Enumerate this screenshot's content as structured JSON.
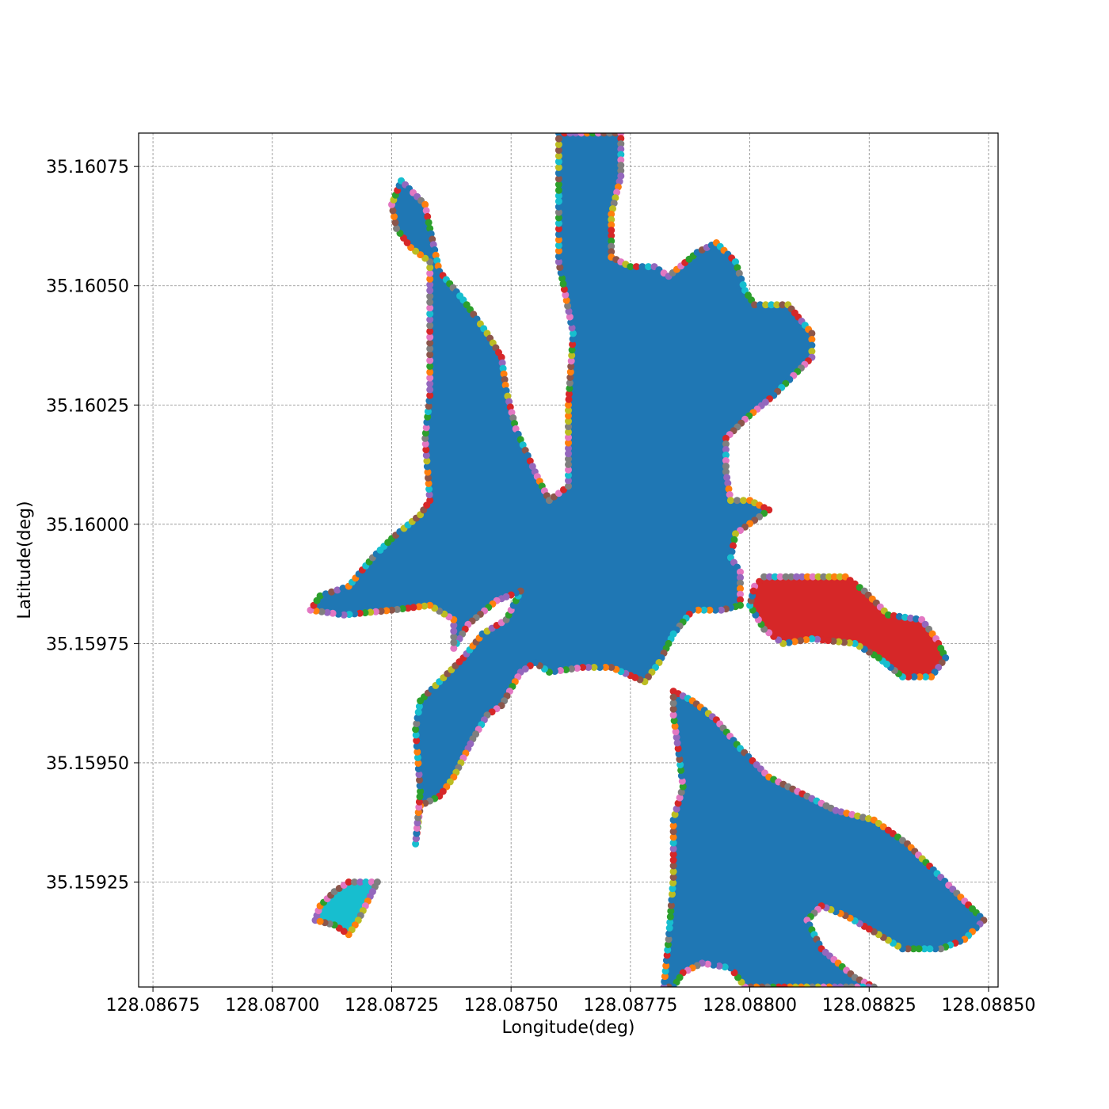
{
  "chart_data": {
    "type": "scatter",
    "title": "",
    "xlabel": "Longitude(deg)",
    "ylabel": "Latitude(deg)",
    "xlim": [
      128.08672,
      128.08852
    ],
    "ylim": [
      35.15903,
      35.16082
    ],
    "xticks": [
      128.08675,
      128.087,
      128.08725,
      128.0875,
      128.08775,
      128.088,
      128.08825,
      128.0885
    ],
    "xtick_labels": [
      "128.08675",
      "128.08700",
      "128.08725",
      "128.08750",
      "128.08775",
      "128.08800",
      "128.08825",
      "128.08850"
    ],
    "yticks": [
      35.15925,
      35.1595,
      35.15975,
      35.16,
      35.16025,
      35.1605,
      35.16075
    ],
    "ytick_labels": [
      "35.15925",
      "35.15950",
      "35.15975",
      "35.16000",
      "35.16025",
      "35.16050",
      "35.16075"
    ],
    "grid": true,
    "grid_style": "dashed",
    "boundary_point_palette": [
      "#1f77b4",
      "#ff7f0e",
      "#2ca02c",
      "#d62728",
      "#9467bd",
      "#8c564b",
      "#e377c2",
      "#7f7f7f",
      "#bcbd22",
      "#17becf"
    ],
    "regions": [
      {
        "color": "#1f77b4",
        "polygon": [
          [
            128.0876,
            35.16082
          ],
          [
            128.08773,
            35.16082
          ],
          [
            128.08773,
            35.16073
          ],
          [
            128.08771,
            35.16065
          ],
          [
            128.08771,
            35.16056
          ],
          [
            128.08775,
            35.16054
          ],
          [
            128.0878,
            35.16054
          ],
          [
            128.08783,
            35.16052
          ],
          [
            128.08789,
            35.16057
          ],
          [
            128.08793,
            35.16059
          ],
          [
            128.08797,
            35.16055
          ],
          [
            128.08799,
            35.16049
          ],
          [
            128.08801,
            35.16046
          ],
          [
            128.08808,
            35.16046
          ],
          [
            128.08813,
            35.1604
          ],
          [
            128.08813,
            35.16035
          ],
          [
            128.0881,
            35.16032
          ],
          [
            128.08805,
            35.16027
          ],
          [
            128.08799,
            35.16022
          ],
          [
            128.08795,
            35.16018
          ],
          [
            128.08795,
            35.16011
          ],
          [
            128.08796,
            35.16005
          ],
          [
            128.088,
            35.16005
          ],
          [
            128.08804,
            35.16003
          ],
          [
            128.08797,
            35.15998
          ],
          [
            128.08796,
            35.15993
          ],
          [
            128.08798,
            35.1599
          ],
          [
            128.08798,
            35.15983
          ],
          [
            128.08794,
            35.15982
          ],
          [
            128.08788,
            35.15982
          ],
          [
            128.08784,
            35.15977
          ],
          [
            128.08781,
            35.15971
          ],
          [
            128.08778,
            35.15967
          ],
          [
            128.08771,
            35.1597
          ],
          [
            128.08765,
            35.1597
          ],
          [
            128.08758,
            35.15969
          ],
          [
            128.08755,
            35.15971
          ],
          [
            128.08752,
            35.15969
          ],
          [
            128.08748,
            35.15962
          ],
          [
            128.08745,
            35.1596
          ],
          [
            128.08742,
            35.15955
          ],
          [
            128.08738,
            35.15947
          ],
          [
            128.08735,
            35.15943
          ],
          [
            128.08731,
            35.15941
          ],
          [
            128.0873,
            35.15933
          ],
          [
            128.08731,
            35.15944
          ],
          [
            128.0873,
            35.15957
          ],
          [
            128.08731,
            35.15963
          ],
          [
            128.08735,
            35.15967
          ],
          [
            128.0874,
            35.15972
          ],
          [
            128.08744,
            35.15977
          ],
          [
            128.08749,
            35.1598
          ],
          [
            128.08752,
            35.15986
          ],
          [
            128.08747,
            35.15984
          ],
          [
            128.08741,
            35.15979
          ],
          [
            128.08738,
            35.15974
          ],
          [
            128.08738,
            35.1598
          ],
          [
            128.08733,
            35.15983
          ],
          [
            128.08725,
            35.15982
          ],
          [
            128.08715,
            35.15981
          ],
          [
            128.08708,
            35.15982
          ],
          [
            128.0871,
            35.15985
          ],
          [
            128.08716,
            35.15987
          ],
          [
            128.08721,
            35.15993
          ],
          [
            128.08725,
            35.15997
          ],
          [
            128.08731,
            35.16002
          ],
          [
            128.08733,
            35.16005
          ],
          [
            128.08732,
            35.16018
          ],
          [
            128.08733,
            35.16027
          ],
          [
            128.08733,
            35.16038
          ],
          [
            128.08733,
            35.16049
          ],
          [
            128.08733,
            35.16055
          ],
          [
            128.08729,
            35.16058
          ],
          [
            128.08726,
            35.16062
          ],
          [
            128.08725,
            35.16067
          ],
          [
            128.08727,
            35.16072
          ],
          [
            128.08732,
            35.16067
          ],
          [
            128.08733,
            35.16062
          ],
          [
            128.08735,
            35.16053
          ],
          [
            128.0874,
            35.16047
          ],
          [
            128.08745,
            35.1604
          ],
          [
            128.08748,
            35.16035
          ],
          [
            128.08749,
            35.16028
          ],
          [
            128.08751,
            35.1602
          ],
          [
            128.08755,
            35.16011
          ],
          [
            128.08758,
            35.16005
          ],
          [
            128.08762,
            35.16008
          ],
          [
            128.08762,
            35.16025
          ],
          [
            128.08763,
            35.1604
          ],
          [
            128.0876,
            35.16055
          ],
          [
            128.0876,
            35.1607
          ]
        ]
      },
      {
        "color": "#1f77b4",
        "polygon": [
          [
            128.08784,
            35.15965
          ],
          [
            128.08788,
            35.15963
          ],
          [
            128.08793,
            35.15959
          ],
          [
            128.08798,
            35.15953
          ],
          [
            128.08804,
            35.15947
          ],
          [
            128.08812,
            35.15943
          ],
          [
            128.08818,
            35.1594
          ],
          [
            128.08826,
            35.15938
          ],
          [
            128.08833,
            35.15933
          ],
          [
            128.0884,
            35.15926
          ],
          [
            128.08845,
            35.15921
          ],
          [
            128.08849,
            35.15917
          ],
          [
            128.08845,
            35.15913
          ],
          [
            128.0884,
            35.15911
          ],
          [
            128.08832,
            35.15911
          ],
          [
            128.08827,
            35.15914
          ],
          [
            128.0882,
            35.15918
          ],
          [
            128.08815,
            35.1592
          ],
          [
            128.08812,
            35.15917
          ],
          [
            128.08815,
            35.15911
          ],
          [
            128.08822,
            35.15905
          ],
          [
            128.08826,
            35.15903
          ],
          [
            128.08799,
            35.15903
          ],
          [
            128.08796,
            35.15907
          ],
          [
            128.0879,
            35.15908
          ],
          [
            128.08786,
            35.15906
          ],
          [
            128.08784,
            35.15903
          ],
          [
            128.08782,
            35.15903
          ],
          [
            128.08783,
            35.15913
          ],
          [
            128.08784,
            35.15926
          ],
          [
            128.08784,
            35.15938
          ],
          [
            128.08786,
            35.15945
          ],
          [
            128.08785,
            35.15953
          ],
          [
            128.08784,
            35.1596
          ]
        ]
      },
      {
        "color": "#d62728",
        "polygon": [
          [
            128.08801,
            35.15987
          ],
          [
            128.08803,
            35.15989
          ],
          [
            128.0882,
            35.15989
          ],
          [
            128.08824,
            35.15986
          ],
          [
            128.08829,
            35.15981
          ],
          [
            128.08836,
            35.1598
          ],
          [
            128.08839,
            35.15976
          ],
          [
            128.08841,
            35.15972
          ],
          [
            128.08838,
            35.15968
          ],
          [
            128.08832,
            35.15968
          ],
          [
            128.08827,
            35.15972
          ],
          [
            128.08822,
            35.15975
          ],
          [
            128.08813,
            35.15976
          ],
          [
            128.08807,
            35.15975
          ],
          [
            128.08803,
            35.15978
          ],
          [
            128.088,
            35.15983
          ]
        ]
      },
      {
        "color": "#17becf",
        "polygon": [
          [
            128.08709,
            35.15917
          ],
          [
            128.0871,
            35.1592
          ],
          [
            128.08713,
            35.15923
          ],
          [
            128.08716,
            35.15925
          ],
          [
            128.08722,
            35.15925
          ],
          [
            128.0872,
            35.15921
          ],
          [
            128.08718,
            35.15917
          ],
          [
            128.08716,
            35.15914
          ],
          [
            128.08713,
            35.15916
          ]
        ]
      }
    ]
  }
}
